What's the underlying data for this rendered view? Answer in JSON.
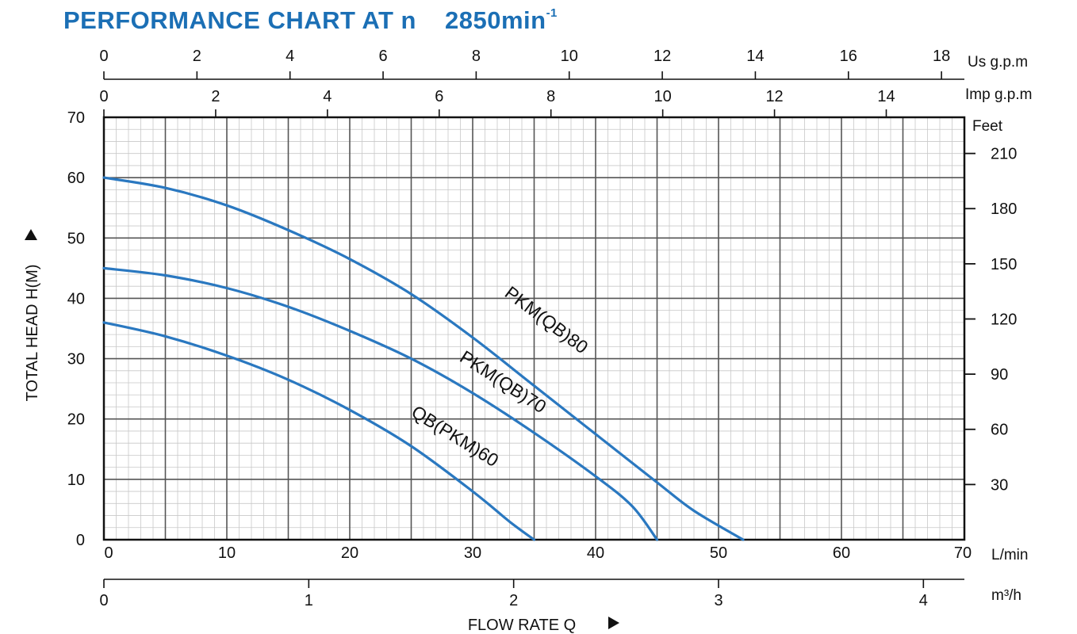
{
  "title": {
    "main": "PERFORMANCE CHART AT n",
    "speed": "2850min",
    "speed_exp": "-1"
  },
  "chart_data": {
    "type": "line",
    "xlabel": "FLOW RATE Q",
    "ylabel": "TOTAL HEAD H(M)",
    "x_unit": "L/min",
    "y_unit": "M",
    "xlim": [
      0,
      70
    ],
    "ylim": [
      0,
      70
    ],
    "x_ticks": [
      0,
      10,
      20,
      30,
      40,
      50,
      60,
      70
    ],
    "y_ticks": [
      0,
      10,
      20,
      30,
      40,
      50,
      60,
      70
    ],
    "grid": true,
    "secondary_axes": {
      "us_gpm": {
        "label": "Us g.p.m",
        "ticks": [
          0,
          2,
          4,
          6,
          8,
          10,
          12,
          14,
          16,
          18
        ]
      },
      "imp_gpm": {
        "label": "Imp g.p.m",
        "ticks": [
          0,
          2,
          4,
          6,
          8,
          10,
          12,
          14
        ]
      },
      "feet": {
        "label": "Feet",
        "ticks": [
          30,
          60,
          90,
          120,
          150,
          180,
          210
        ]
      },
      "m3h": {
        "label": "m³/h",
        "ticks": [
          0,
          1,
          2,
          3,
          4
        ]
      }
    },
    "series": [
      {
        "name": "PKM(QB)80",
        "color": "#2a78c0",
        "points": [
          [
            0,
            60
          ],
          [
            5,
            58.3
          ],
          [
            10,
            55.4
          ],
          [
            15,
            51.3
          ],
          [
            20,
            46.5
          ],
          [
            25,
            40.7
          ],
          [
            30,
            33.5
          ],
          [
            35,
            25.5
          ],
          [
            40,
            17.5
          ],
          [
            45,
            9.5
          ],
          [
            48,
            4.8
          ],
          [
            52,
            0
          ]
        ]
      },
      {
        "name": "PKM(QB)70",
        "color": "#2a78c0",
        "points": [
          [
            0,
            45
          ],
          [
            5,
            43.8
          ],
          [
            10,
            41.7
          ],
          [
            15,
            38.6
          ],
          [
            20,
            34.6
          ],
          [
            25,
            30
          ],
          [
            30,
            24.3
          ],
          [
            35,
            17.7
          ],
          [
            40,
            10.5
          ],
          [
            43,
            5.5
          ],
          [
            45,
            0
          ]
        ]
      },
      {
        "name": "QB(PKM)60",
        "color": "#2a78c0",
        "points": [
          [
            0,
            36
          ],
          [
            5,
            33.7
          ],
          [
            10,
            30.5
          ],
          [
            15,
            26.5
          ],
          [
            20,
            21.5
          ],
          [
            25,
            15.5
          ],
          [
            30,
            8
          ],
          [
            33,
            3
          ],
          [
            35,
            0
          ]
        ]
      }
    ]
  }
}
